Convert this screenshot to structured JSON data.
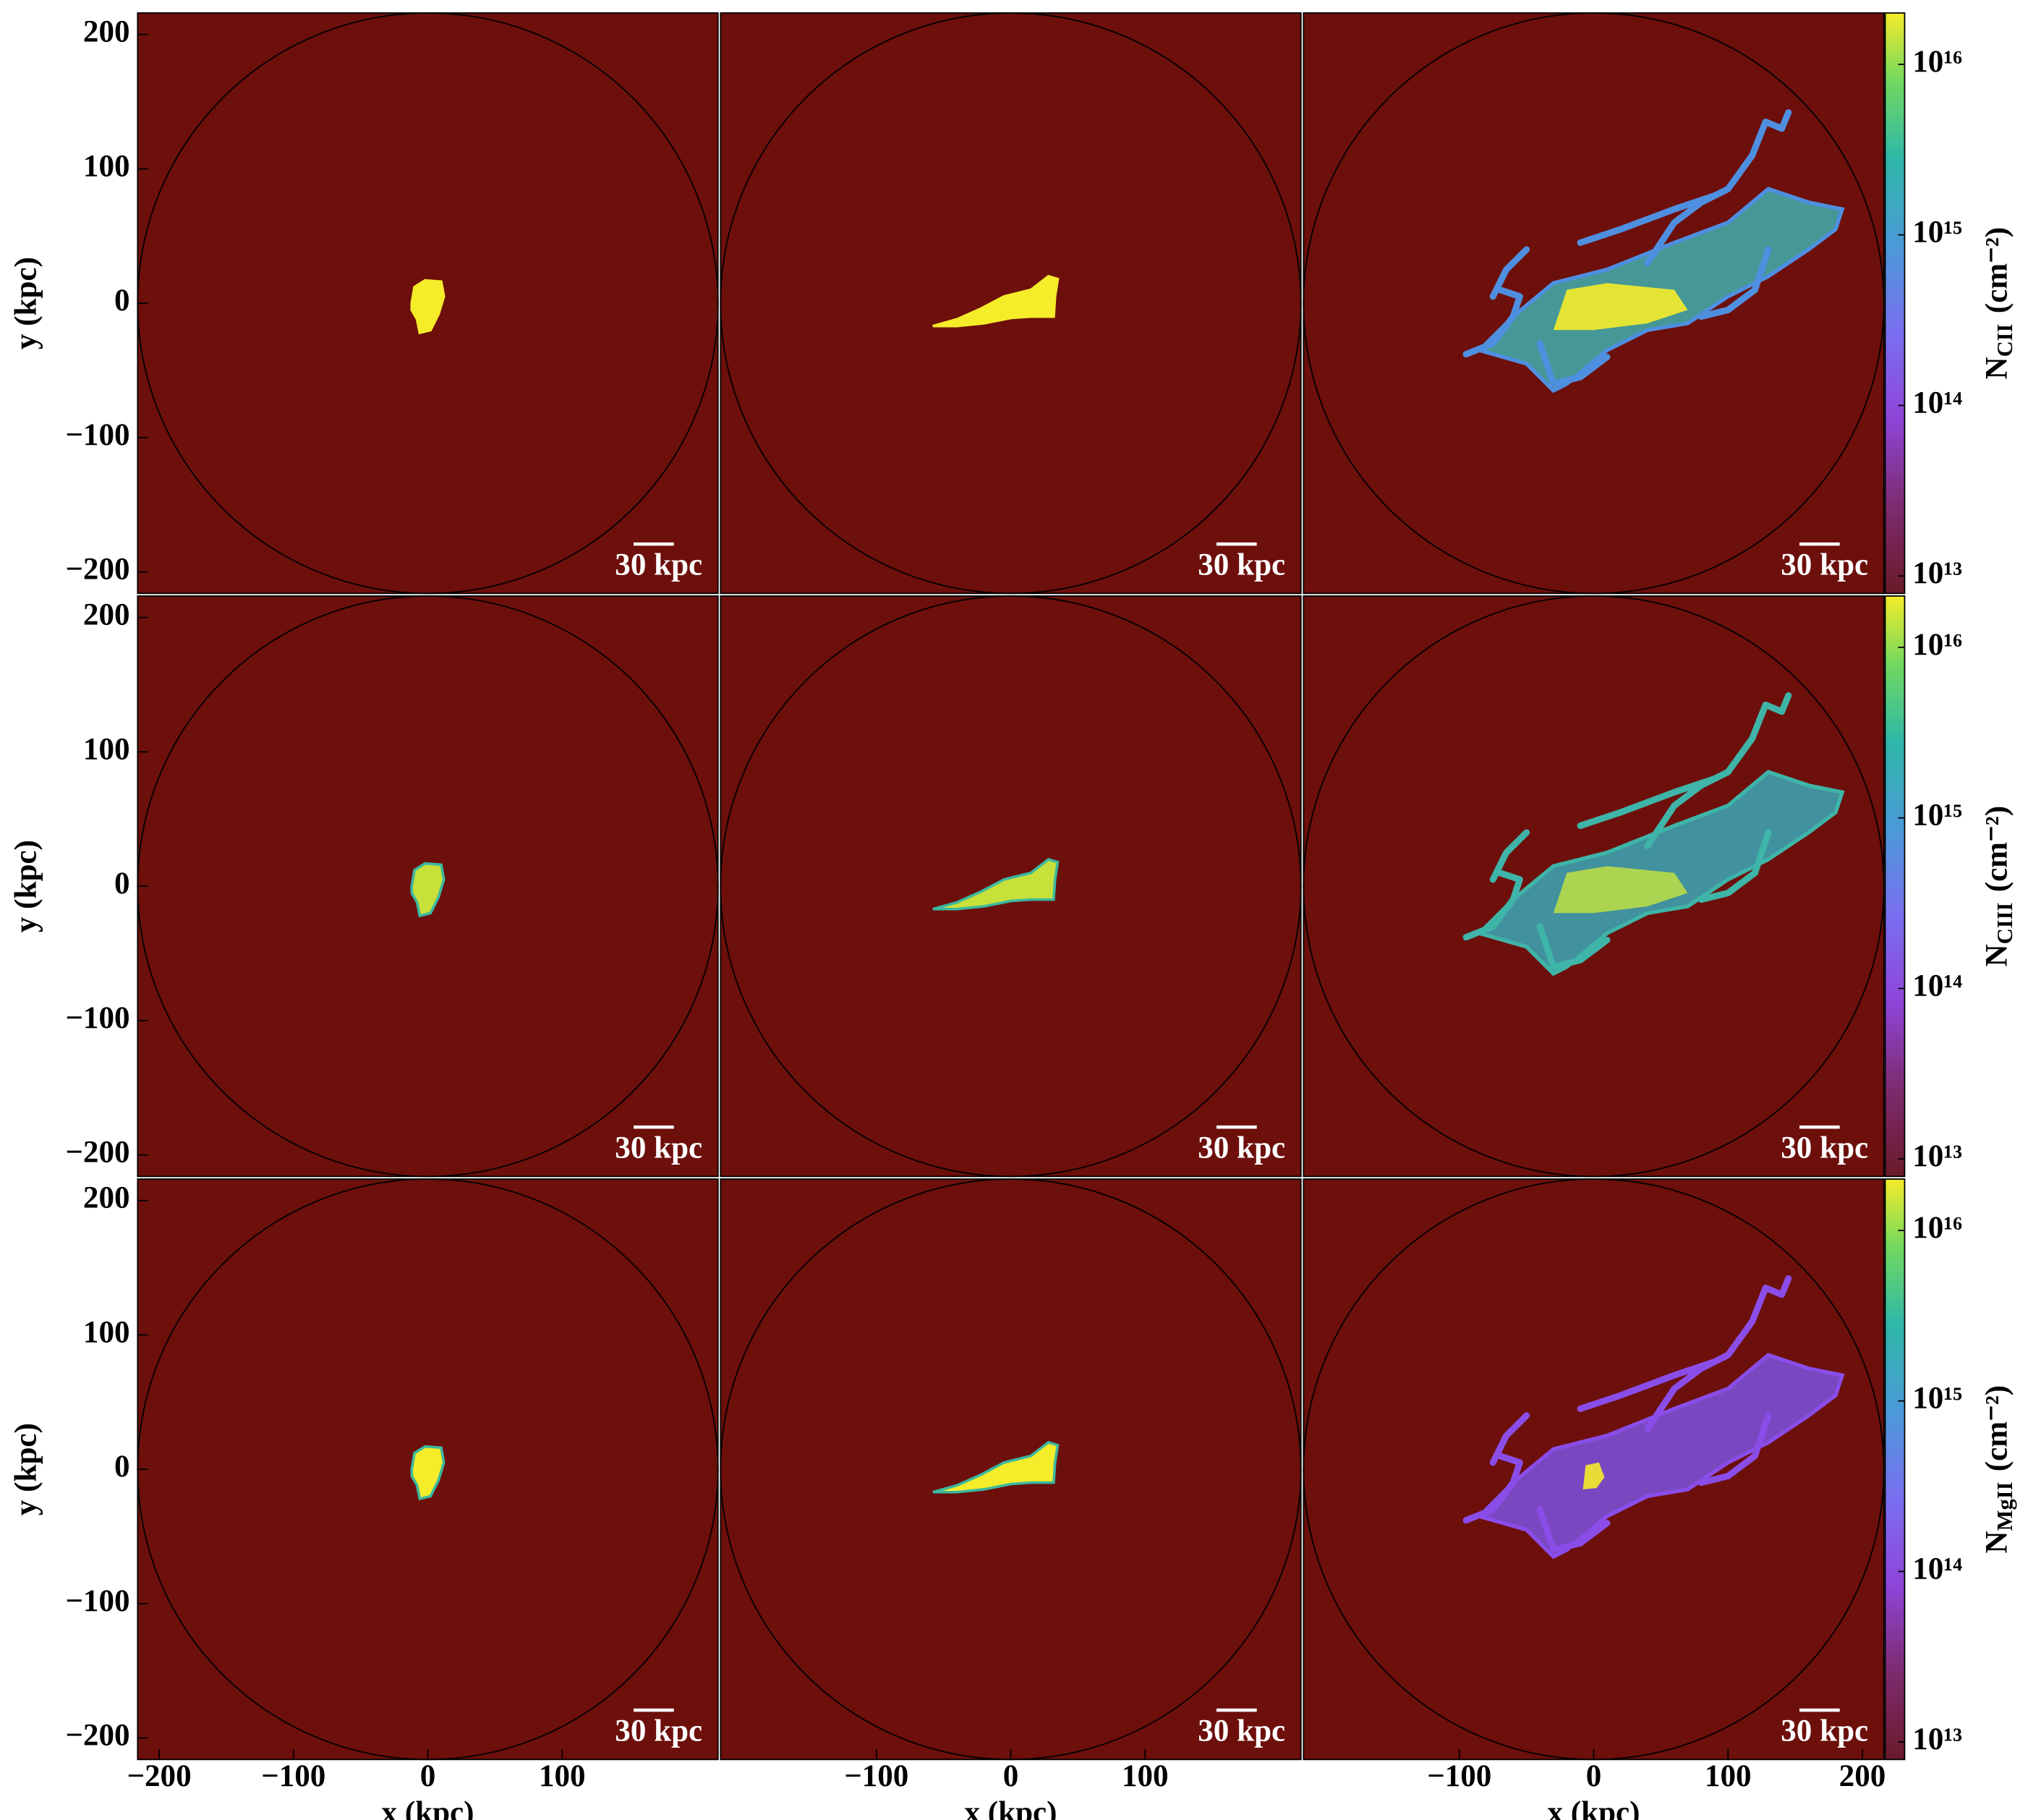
{
  "chart_data": [
    {
      "type": "image",
      "xlim": [
        -216,
        216
      ],
      "ylim": [
        -216,
        216
      ],
      "ylabel": "y (kpc)",
      "yticks": [
        {
          "value": -200,
          "label": "−200"
        },
        {
          "value": -100,
          "label": "−100"
        },
        0,
        100,
        200
      ],
      "scale_bar": {
        "label": "30 kpc",
        "length": 30
      }
    },
    {
      "type": "image",
      "xlim": [
        -216,
        216
      ],
      "ylim": [
        -216,
        216
      ],
      "scale_bar": {
        "label": "30 kpc",
        "length": 30
      }
    },
    {
      "type": "image",
      "xlim": [
        -216,
        216
      ],
      "ylim": [
        -216,
        216
      ],
      "scale_bar": {
        "label": "30 kpc",
        "length": 30
      },
      "colorbar": {
        "log": true,
        "lim": [
          7900000000000.0,
          2e+16
        ],
        "ticks": [
          {
            "value": 10000000000000.0,
            "label": "10¹³"
          },
          {
            "value": 100000000000000.0,
            "label": "10¹⁴"
          },
          {
            "value": 1000000000000000.0,
            "label": "10¹⁵"
          },
          {
            "value": 1e+16,
            "label": "10¹⁶"
          }
        ],
        "label": {
          "symbol": "N",
          "subscript": "CII",
          "unit": "(cm⁻²)"
        }
      }
    },
    {
      "type": "image",
      "xlim": [
        -216,
        216
      ],
      "ylim": [
        -216,
        216
      ],
      "ylabel": "y (kpc)",
      "yticks": [
        {
          "value": -200,
          "label": "−200"
        },
        {
          "value": -100,
          "label": "−100"
        },
        0,
        100,
        200
      ],
      "scale_bar": {
        "label": "30 kpc",
        "length": 30
      }
    },
    {
      "type": "image",
      "xlim": [
        -216,
        216
      ],
      "ylim": [
        -216,
        216
      ],
      "scale_bar": {
        "label": "30 kpc",
        "length": 30
      }
    },
    {
      "type": "image",
      "xlim": [
        -216,
        216
      ],
      "ylim": [
        -216,
        216
      ],
      "scale_bar": {
        "label": "30 kpc",
        "length": 30
      },
      "colorbar": {
        "log": true,
        "lim": [
          7900000000000.0,
          2e+16
        ],
        "ticks": [
          {
            "value": 10000000000000.0,
            "label": "10¹³"
          },
          {
            "value": 100000000000000.0,
            "label": "10¹⁴"
          },
          {
            "value": 1000000000000000.0,
            "label": "10¹⁵"
          },
          {
            "value": 1e+16,
            "label": "10¹⁶"
          }
        ],
        "label": {
          "symbol": "N",
          "subscript": "CIII",
          "unit": "(cm⁻²)"
        }
      }
    },
    {
      "type": "image",
      "xlim": [
        -216,
        216
      ],
      "ylim": [
        -216,
        216
      ],
      "ylabel": "y (kpc)",
      "xlabel": "x (kpc)",
      "yticks": [
        {
          "value": -200,
          "label": "−200"
        },
        {
          "value": -100,
          "label": "−100"
        },
        0,
        100,
        200
      ],
      "xticks": [
        {
          "value": -200,
          "label": "−200"
        },
        {
          "value": -100,
          "label": "−100"
        },
        0,
        100
      ],
      "scale_bar": {
        "label": "30 kpc",
        "length": 30
      }
    },
    {
      "type": "image",
      "xlim": [
        -216,
        216
      ],
      "ylim": [
        -216,
        216
      ],
      "xlabel": "x (kpc)",
      "xticks": [
        {
          "value": -100,
          "label": "−100"
        },
        0,
        100
      ],
      "scale_bar": {
        "label": "30 kpc",
        "length": 30
      }
    },
    {
      "type": "image",
      "xlim": [
        -216,
        216
      ],
      "ylim": [
        -216,
        216
      ],
      "xlabel": "x (kpc)",
      "xticks": [
        {
          "value": -100,
          "label": "−100"
        },
        0,
        100,
        200
      ],
      "scale_bar": {
        "label": "30 kpc",
        "length": 30
      },
      "colorbar": {
        "log": true,
        "lim": [
          7900000000000.0,
          2e+16
        ],
        "ticks": [
          {
            "value": 10000000000000.0,
            "label": "10¹³"
          },
          {
            "value": 100000000000000.0,
            "label": "10¹⁴"
          },
          {
            "value": 1000000000000000.0,
            "label": "10¹⁵"
          },
          {
            "value": 1e+16,
            "label": "10¹⁶"
          }
        ],
        "label": {
          "symbol": "N",
          "subscript": "MgII",
          "unit": "(cm⁻²)"
        }
      }
    }
  ]
}
